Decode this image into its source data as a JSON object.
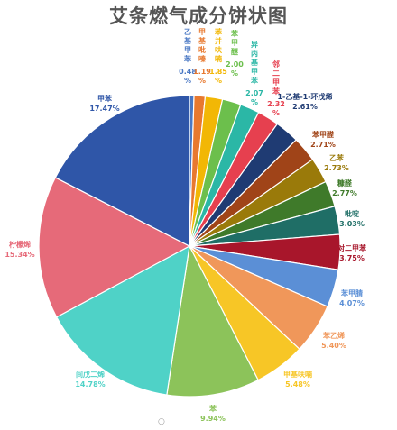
{
  "chart_data": {
    "type": "pie",
    "title": "艾条燃气成分饼状图",
    "slices": [
      {
        "label": "乙基甲苯",
        "value": 0.48,
        "text": "0.48%",
        "color": "#4a78c4"
      },
      {
        "label": "甲基吡嗪",
        "value": 1.19,
        "text": "1.19%",
        "color": "#e8792f"
      },
      {
        "label": "苯并呋喃",
        "value": 1.85,
        "text": "1.85%",
        "color": "#f2b705"
      },
      {
        "label": "苯甲醚",
        "value": 2.0,
        "text": "2.00%",
        "color": "#6cbf4c"
      },
      {
        "label": "异丙基甲苯",
        "value": 2.07,
        "text": "2.07%",
        "color": "#2bb7a6"
      },
      {
        "label": "邻二甲苯",
        "value": 2.32,
        "text": "2.32%",
        "color": "#e6404f"
      },
      {
        "label": "1-乙基-1-环戊烯",
        "value": 2.61,
        "text": "2.61%",
        "color": "#1f3b73"
      },
      {
        "label": "苯甲醛",
        "value": 2.71,
        "text": "2.71%",
        "color": "#a04418"
      },
      {
        "label": "乙苯",
        "value": 2.73,
        "text": "2.73%",
        "color": "#9a7a0a"
      },
      {
        "label": "糠醛",
        "value": 2.77,
        "text": "2.77%",
        "color": "#3f7a2a"
      },
      {
        "label": "吡啶",
        "value": 3.03,
        "text": "3.03%",
        "color": "#1f6e66"
      },
      {
        "label": "对二甲苯",
        "value": 3.75,
        "text": "3.75%",
        "color": "#a8162b"
      },
      {
        "label": "苯甲腈",
        "value": 4.07,
        "text": "4.07%",
        "color": "#5b8fd6"
      },
      {
        "label": "苯乙烯",
        "value": 5.4,
        "text": "5.40%",
        "color": "#f0975a"
      },
      {
        "label": "甲基呋喃",
        "value": 5.48,
        "text": "5.48%",
        "color": "#f7c626"
      },
      {
        "label": "苯",
        "value": 9.94,
        "text": "9.94%",
        "color": "#8cc35a"
      },
      {
        "label": "间戊二烯",
        "value": 14.78,
        "text": "14.78%",
        "color": "#4fd2c7"
      },
      {
        "label": "柠檬烯",
        "value": 15.34,
        "text": "15.34%",
        "color": "#e66a79"
      },
      {
        "label": "甲苯",
        "value": 17.47,
        "text": "17.47%",
        "color": "#2f56a8"
      }
    ]
  },
  "footer_mark": "○"
}
